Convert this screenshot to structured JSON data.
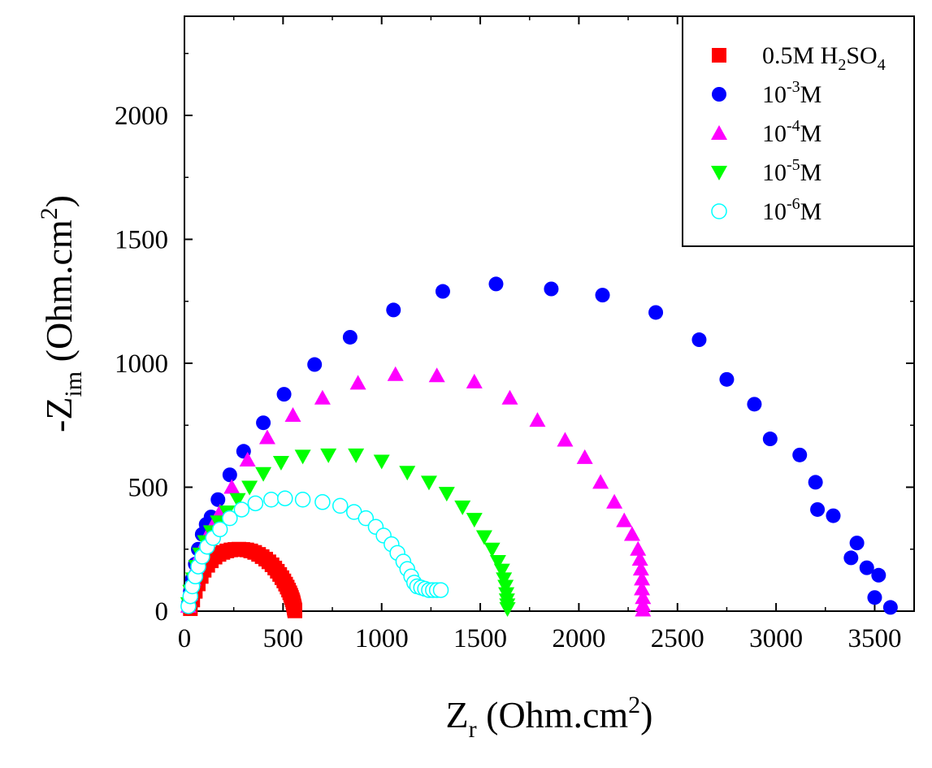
{
  "chart_data": {
    "type": "scatter",
    "title": "",
    "xlabel": {
      "main": "Z",
      "sub": "r",
      "unit_pre": " (Ohm.cm",
      "unit_sup": "2",
      "unit_post": ")"
    },
    "ylabel": {
      "main": "-Z",
      "sub": "im",
      "unit_pre": " (Ohm.cm",
      "unit_sup": "2",
      "unit_post": ")"
    },
    "xlim": [
      0,
      3700
    ],
    "ylim": [
      0,
      2400
    ],
    "xticks": [
      "0",
      "500",
      "1000",
      "1500",
      "2000",
      "2500",
      "3000",
      "3500"
    ],
    "xtick_values": [
      0,
      500,
      1000,
      1500,
      2000,
      2500,
      3000,
      3500
    ],
    "yticks": [
      "0",
      "500",
      "1000",
      "1500",
      "2000"
    ],
    "ytick_values": [
      0,
      500,
      1000,
      1500,
      2000
    ],
    "legend_position": "top-right",
    "grid": false,
    "series": [
      {
        "name": "0.5M H2SO4",
        "label": {
          "base": "0.5M H",
          "sub": "2",
          "mid": "SO",
          "sub2": "4"
        },
        "marker": "square",
        "filled": true,
        "color": "#ff0000",
        "x": [
          30,
          42,
          55,
          70,
          85,
          100,
          118,
          136,
          155,
          175,
          195,
          215,
          236,
          256,
          276,
          296,
          316,
          336,
          356,
          376,
          394,
          412,
          428,
          444,
          458,
          471,
          483,
          494,
          504,
          513,
          521,
          528,
          534,
          539,
          543,
          547,
          550,
          552,
          554,
          556,
          557,
          558,
          559,
          560,
          560
        ],
        "y": [
          10,
          45,
          80,
          110,
          140,
          165,
          185,
          203,
          218,
          229,
          237,
          243,
          247,
          249,
          250,
          249,
          247,
          243,
          237,
          229,
          220,
          210,
          199,
          187,
          174,
          161,
          148,
          135,
          122,
          109,
          97,
          85,
          74,
          64,
          55,
          46,
          38,
          31,
          24,
          18,
          13,
          9,
          6,
          3,
          1
        ]
      },
      {
        "name": "10-3M",
        "label": {
          "base": "10",
          "sup": "-3",
          "post": "M"
        },
        "marker": "circle",
        "filled": true,
        "color": "#0000ff",
        "x": [
          20,
          30,
          40,
          55,
          70,
          90,
          110,
          135,
          170,
          230,
          300,
          400,
          505,
          660,
          840,
          1060,
          1310,
          1580,
          1860,
          2120,
          2390,
          2610,
          2750,
          2890,
          2970,
          3120,
          3200,
          3210,
          3290,
          3410,
          3380,
          3460,
          3520,
          3500,
          3580
        ],
        "y": [
          30,
          80,
          130,
          190,
          250,
          310,
          350,
          380,
          450,
          550,
          645,
          760,
          875,
          995,
          1105,
          1215,
          1290,
          1320,
          1300,
          1275,
          1205,
          1095,
          935,
          835,
          695,
          630,
          520,
          410,
          385,
          275,
          215,
          175,
          145,
          55,
          15
        ]
      },
      {
        "name": "10-4M",
        "label": {
          "base": "10",
          "sup": "-4",
          "post": "M"
        },
        "marker": "triangle-up",
        "filled": true,
        "color": "#ff00ff",
        "x": [
          20,
          30,
          45,
          60,
          80,
          100,
          120,
          140,
          180,
          240,
          320,
          420,
          550,
          700,
          880,
          1070,
          1280,
          1470,
          1650,
          1790,
          1930,
          2030,
          2110,
          2180,
          2230,
          2270,
          2300,
          2310,
          2315,
          2320,
          2320,
          2325,
          2325,
          2325
        ],
        "y": [
          20,
          70,
          130,
          180,
          230,
          270,
          310,
          340,
          400,
          500,
          610,
          700,
          790,
          860,
          920,
          955,
          950,
          925,
          860,
          770,
          690,
          620,
          520,
          440,
          365,
          310,
          250,
          210,
          170,
          130,
          90,
          55,
          25,
          5
        ]
      },
      {
        "name": "10-5M",
        "label": {
          "base": "10",
          "sup": "-5",
          "post": "M"
        },
        "marker": "triangle-down",
        "filled": true,
        "color": "#00ff00",
        "x": [
          20,
          30,
          45,
          60,
          80,
          105,
          135,
          170,
          215,
          270,
          330,
          400,
          490,
          600,
          730,
          870,
          1000,
          1130,
          1240,
          1330,
          1410,
          1470,
          1520,
          1560,
          1590,
          1610,
          1620,
          1628,
          1632,
          1635,
          1637,
          1638
        ],
        "y": [
          30,
          80,
          130,
          180,
          230,
          280,
          320,
          360,
          400,
          450,
          500,
          555,
          600,
          625,
          630,
          630,
          605,
          560,
          520,
          475,
          420,
          370,
          300,
          250,
          200,
          165,
          130,
          100,
          70,
          45,
          25,
          10
        ]
      },
      {
        "name": "10-6M",
        "label": {
          "base": "10",
          "sup": "-6",
          "post": "M"
        },
        "marker": "circle",
        "filled": false,
        "color": "#00ffff",
        "x": [
          20,
          30,
          40,
          55,
          70,
          90,
          115,
          145,
          180,
          230,
          290,
          360,
          440,
          510,
          600,
          700,
          790,
          860,
          920,
          970,
          1010,
          1050,
          1080,
          1110,
          1130,
          1150,
          1165,
          1180,
          1200,
          1220,
          1240,
          1260,
          1280,
          1300
        ],
        "y": [
          20,
          60,
          100,
          140,
          180,
          220,
          260,
          295,
          330,
          375,
          410,
          435,
          450,
          455,
          450,
          440,
          425,
          400,
          375,
          340,
          305,
          270,
          235,
          200,
          170,
          140,
          115,
          100,
          95,
          90,
          85,
          85,
          85,
          85
        ]
      }
    ]
  }
}
